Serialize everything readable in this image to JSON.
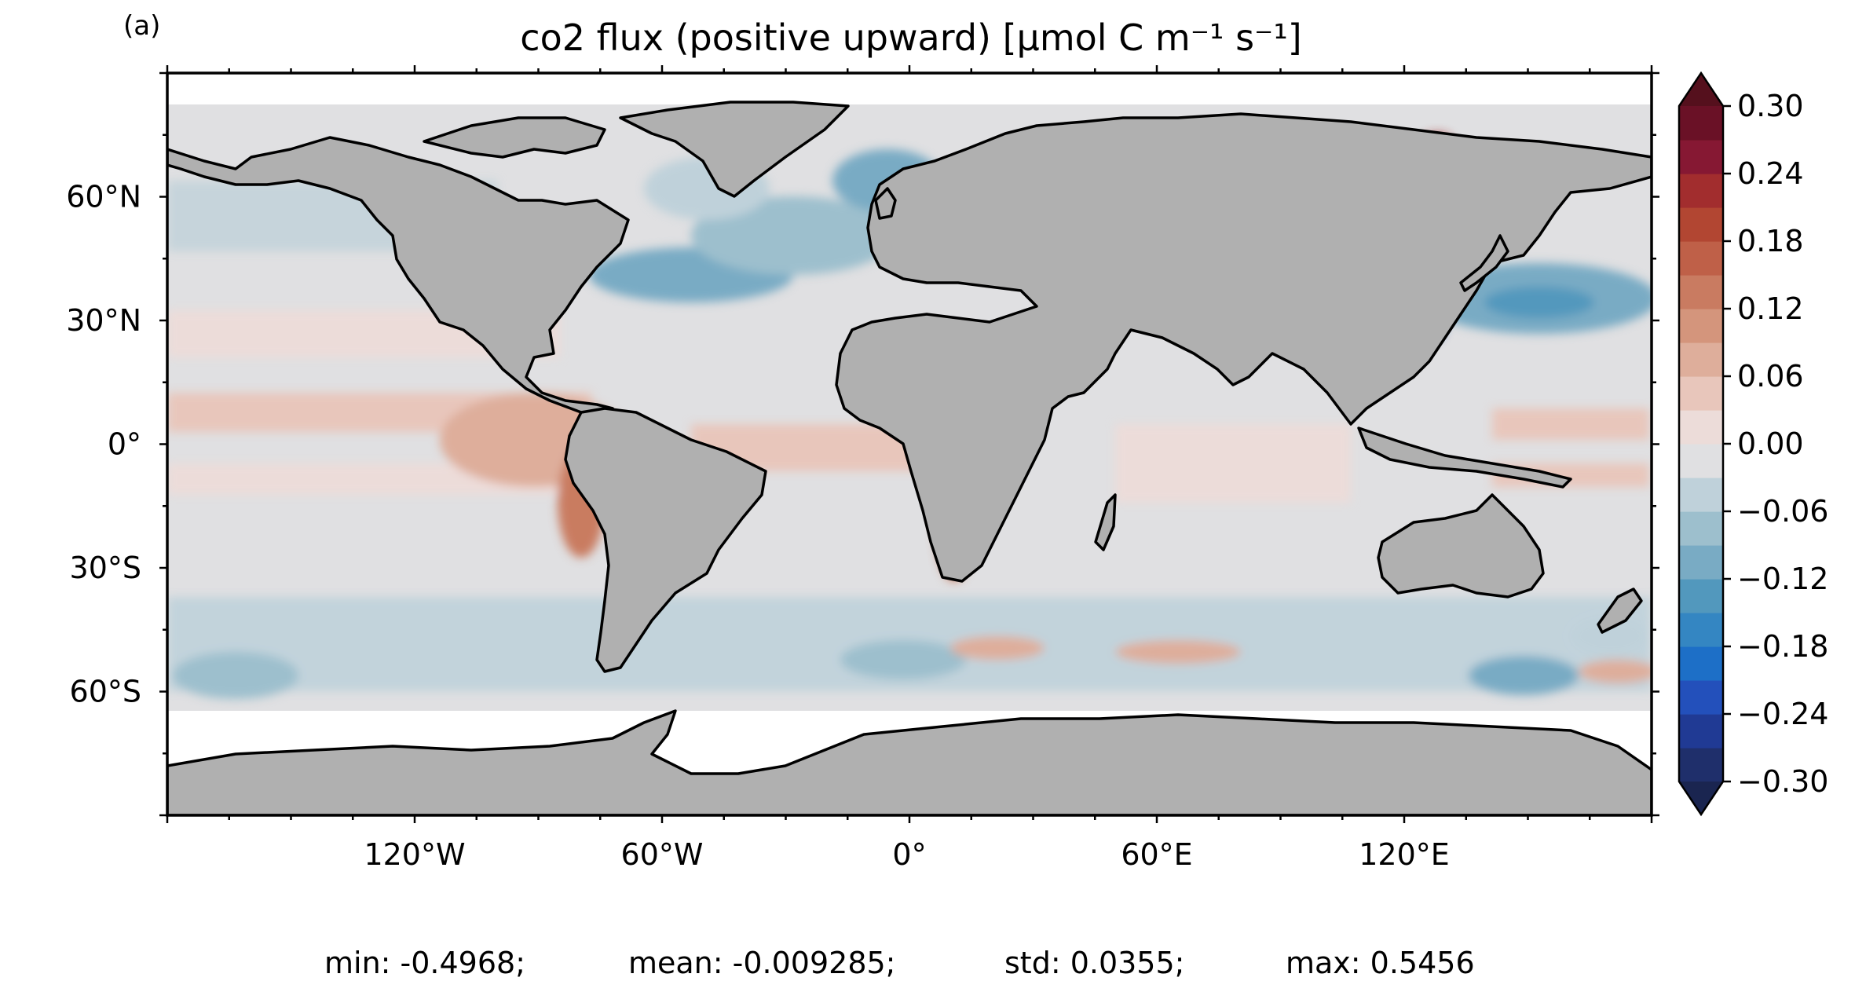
{
  "panel_label": "(a)",
  "title": "co2 flux (positive upward) [μmol C m⁻¹ s⁻¹]",
  "colors": {
    "land": "#b0b0b0",
    "sea_ice": "#ffffff",
    "frame": "#000000"
  },
  "map": {
    "projection": "PlateCarree",
    "lon_range": [
      -180,
      180
    ],
    "lat_range": [
      -90,
      90
    ],
    "x_ticks": [
      {
        "lon": -120,
        "label": "120°W"
      },
      {
        "lon": -60,
        "label": "60°W"
      },
      {
        "lon": 0,
        "label": "0°"
      },
      {
        "lon": 60,
        "label": "60°E"
      },
      {
        "lon": 120,
        "label": "120°E"
      }
    ],
    "y_ticks": [
      {
        "lat": 60,
        "label": "60°N"
      },
      {
        "lat": 30,
        "label": "30°N"
      },
      {
        "lat": 0,
        "label": "0°"
      },
      {
        "lat": -30,
        "label": "30°S"
      },
      {
        "lat": -60,
        "label": "60°S"
      }
    ]
  },
  "colorbar": {
    "min": -0.3,
    "max": 0.3,
    "extend": "both",
    "ticks": [
      {
        "value": 0.3,
        "label": "0.30"
      },
      {
        "value": 0.24,
        "label": "0.24"
      },
      {
        "value": 0.18,
        "label": "0.18"
      },
      {
        "value": 0.12,
        "label": "0.12"
      },
      {
        "value": 0.06,
        "label": "0.06"
      },
      {
        "value": 0.0,
        "label": "0.00"
      },
      {
        "value": -0.06,
        "label": "−0.06"
      },
      {
        "value": -0.12,
        "label": "−0.12"
      },
      {
        "value": -0.18,
        "label": "−0.18"
      },
      {
        "value": -0.24,
        "label": "−0.24"
      },
      {
        "value": -0.3,
        "label": "−0.30"
      }
    ],
    "levels": [
      {
        "lo": -0.3,
        "hi": -0.27,
        "color": "#1f2f6b"
      },
      {
        "lo": -0.27,
        "hi": -0.24,
        "color": "#203a94"
      },
      {
        "lo": -0.24,
        "hi": -0.21,
        "color": "#2350bb"
      },
      {
        "lo": -0.21,
        "hi": -0.18,
        "color": "#1d6fc7"
      },
      {
        "lo": -0.18,
        "hi": -0.15,
        "color": "#3486c2"
      },
      {
        "lo": -0.15,
        "hi": -0.12,
        "color": "#5298bd"
      },
      {
        "lo": -0.12,
        "hi": -0.09,
        "color": "#79abc4"
      },
      {
        "lo": -0.09,
        "hi": -0.06,
        "color": "#9dbfcd"
      },
      {
        "lo": -0.06,
        "hi": -0.03,
        "color": "#bfd1da"
      },
      {
        "lo": -0.03,
        "hi": 0.0,
        "color": "#e0e0e2"
      },
      {
        "lo": 0.0,
        "hi": 0.03,
        "color": "#ecdcd9"
      },
      {
        "lo": 0.03,
        "hi": 0.06,
        "color": "#e8c6bb"
      },
      {
        "lo": 0.06,
        "hi": 0.09,
        "color": "#deae9b"
      },
      {
        "lo": 0.09,
        "hi": 0.12,
        "color": "#d4957c"
      },
      {
        "lo": 0.12,
        "hi": 0.15,
        "color": "#c97b61"
      },
      {
        "lo": 0.15,
        "hi": 0.18,
        "color": "#bf6048"
      },
      {
        "lo": 0.18,
        "hi": 0.21,
        "color": "#b24632"
      },
      {
        "lo": 0.21,
        "hi": 0.24,
        "color": "#a22d2e"
      },
      {
        "lo": 0.24,
        "hi": 0.27,
        "color": "#861833"
      },
      {
        "lo": 0.27,
        "hi": 0.3,
        "color": "#6a1126"
      }
    ],
    "under_color": "#1a2550",
    "over_color": "#55101d"
  },
  "stats": {
    "min": "min: -0.4968;",
    "mean": "mean: -0.009285;",
    "std": "std: 0.0355;",
    "max": "max: 0.5456"
  }
}
